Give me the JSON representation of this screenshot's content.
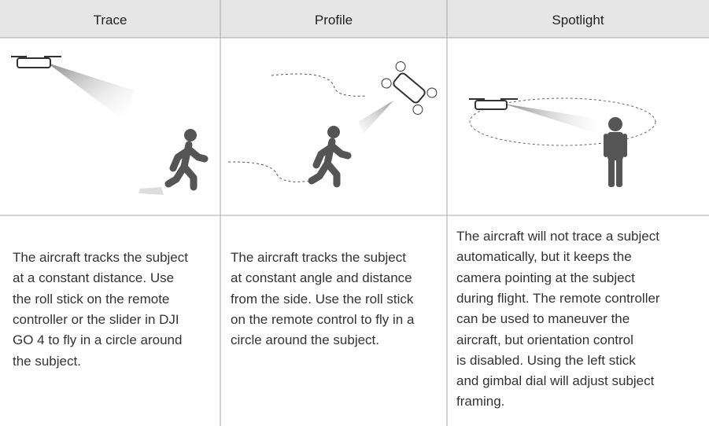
{
  "table": {
    "headers": [
      "Trace",
      "Profile",
      "Spotlight"
    ],
    "descriptions": [
      [
        "The aircraft tracks the subject",
        "at a constant distance. Use",
        "the roll stick on the remote",
        "controller or the slider in DJI",
        "GO 4 to fly in a circle around",
        "the subject."
      ],
      [
        "The aircraft tracks the subject",
        "at constant angle and distance",
        "from the side. Use the roll stick",
        "on the remote control to fly in a",
        "circle around the subject."
      ],
      [
        "The aircraft will not trace a subject",
        "automatically, but it keeps the",
        "camera pointing at the subject",
        "during flight. The remote controller",
        "can be used to maneuver the",
        "aircraft, but orientation control",
        "is disabled. Using the left stick",
        "and gimbal dial will adjust subject",
        "framing."
      ]
    ]
  }
}
